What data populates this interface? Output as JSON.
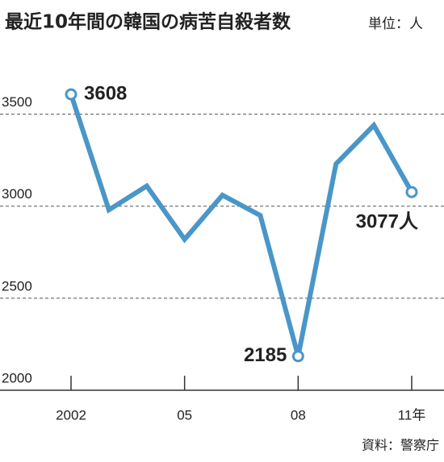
{
  "chart_data": {
    "type": "line",
    "title": "最近10年間の韓国の病苦自殺者数",
    "unit": "単位：人",
    "source": "資料：警察庁",
    "categories": [
      "2002",
      null,
      null,
      "05",
      null,
      null,
      "08",
      null,
      null,
      "11年"
    ],
    "values": [
      3608,
      2980,
      3110,
      2820,
      3060,
      2950,
      2185,
      3230,
      3440,
      3077
    ],
    "value_labels": [
      "3608",
      null,
      null,
      null,
      null,
      null,
      "2185",
      null,
      null,
      "3077人"
    ],
    "color": "#4a96c8",
    "ylim": [
      2000,
      3700
    ],
    "yticks": [
      2000,
      2500,
      3000,
      3500
    ],
    "grid": true
  }
}
